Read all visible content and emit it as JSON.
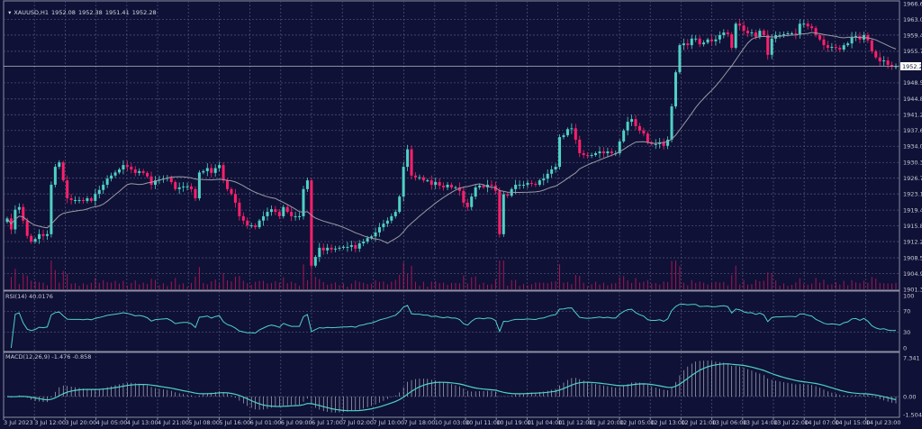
{
  "header": {
    "symbol": "XAUUSD,H1",
    "open": "1952.08",
    "high": "1952.38",
    "low": "1951.41",
    "close": "1952.28",
    "menu_icon": "triangle-down-icon"
  },
  "colors": {
    "background": "#0f1136",
    "bull": "#4fd1c5",
    "bear": "#ff1f6b",
    "grid": "#4b4f73",
    "ma_line": "#9a9aa6",
    "volume": "#c0175a",
    "indicator_line": "#4fd1c5"
  },
  "chart_data": {
    "type": "candlestick",
    "timeframe": "H1",
    "price_axis": {
      "ylim": [
        1901.3,
        1966.6
      ],
      "tick_labels": [
        "1966.60",
        "1963.00",
        "1959.40",
        "1955.70",
        "1948.50",
        "1944.80",
        "1941.20",
        "1937.60",
        "1934.00",
        "1930.30",
        "1926.70",
        "1923.10",
        "1919.40",
        "1915.80",
        "1912.20",
        "1908.50",
        "1904.90",
        "1901.30"
      ],
      "current_price": "1952.28"
    },
    "time_axis": {
      "tick_labels": [
        "3 Jul 2023",
        "3 Jul 12:00",
        "3 Jul 20:00",
        "4 Jul 05:00",
        "4 Jul 13:00",
        "4 Jul 21:00",
        "5 Jul 08:00",
        "5 Jul 16:00",
        "6 Jul 01:00",
        "6 Jul 09:00",
        "6 Jul 17:00",
        "7 Jul 02:00",
        "7 Jul 10:00",
        "7 Jul 18:00",
        "10 Jul 03:00",
        "10 Jul 11:00",
        "10 Jul 19:00",
        "11 Jul 04:00",
        "11 Jul 12:00",
        "11 Jul 20:00",
        "12 Jul 05:00",
        "12 Jul 13:00",
        "12 Jul 21:00",
        "13 Jul 06:00",
        "13 Jul 14:00",
        "13 Jul 22:00",
        "14 Jul 07:00",
        "14 Jul 15:00",
        "14 Jul 23:00"
      ]
    },
    "closes": [
      1917.5,
      1915.0,
      1919.5,
      1920.1,
      1917.0,
      1913.5,
      1912.2,
      1912.8,
      1913.9,
      1913.5,
      1913.9,
      1925.2,
      1929.3,
      1930.3,
      1926.2,
      1922.1,
      1921.7,
      1921.7,
      1921.7,
      1921.5,
      1922.1,
      1921.5,
      1923.1,
      1924.0,
      1925.2,
      1926.6,
      1927.3,
      1928.0,
      1928.7,
      1929.7,
      1929.3,
      1928.7,
      1927.9,
      1928.3,
      1927.9,
      1927.1,
      1925.2,
      1926.2,
      1926.4,
      1926.6,
      1926.8,
      1925.8,
      1924.2,
      1924.6,
      1924.8,
      1924.8,
      1924.2,
      1922.1,
      1928.0,
      1928.3,
      1929.0,
      1927.9,
      1929.0,
      1929.7,
      1926.2,
      1924.2,
      1923.1,
      1921.1,
      1918.0,
      1917.0,
      1915.9,
      1915.9,
      1915.5,
      1917.0,
      1918.0,
      1919.0,
      1919.6,
      1919.0,
      1918.0,
      1920.1,
      1919.0,
      1918.0,
      1918.0,
      1918.0,
      1924.2,
      1926.2,
      1906.7,
      1908.7,
      1910.8,
      1910.2,
      1910.8,
      1910.4,
      1910.6,
      1910.8,
      1911.0,
      1911.0,
      1911.4,
      1910.6,
      1911.8,
      1912.2,
      1913.0,
      1913.4,
      1914.3,
      1915.5,
      1916.3,
      1917.0,
      1918.0,
      1919.0,
      1922.5,
      1929.3,
      1933.3,
      1927.3,
      1926.9,
      1926.9,
      1926.2,
      1926.2,
      1925.2,
      1925.8,
      1925.0,
      1924.6,
      1925.2,
      1924.6,
      1924.6,
      1923.8,
      1921.1,
      1920.1,
      1922.5,
      1924.6,
      1925.0,
      1924.6,
      1925.2,
      1925.0,
      1923.8,
      1913.9,
      1923.0,
      1922.7,
      1924.2,
      1925.2,
      1925.2,
      1925.2,
      1925.6,
      1925.4,
      1925.2,
      1926.2,
      1926.6,
      1927.7,
      1928.7,
      1929.3,
      1936.1,
      1936.5,
      1937.9,
      1938.1,
      1935.5,
      1932.4,
      1932.0,
      1931.8,
      1932.0,
      1932.4,
      1932.8,
      1932.4,
      1932.8,
      1932.4,
      1932.4,
      1935.1,
      1937.6,
      1939.6,
      1940.2,
      1938.6,
      1937.6,
      1936.9,
      1934.9,
      1934.5,
      1934.5,
      1934.9,
      1934.1,
      1935.5,
      1943.1,
      1950.9,
      1957.1,
      1957.5,
      1957.1,
      1958.6,
      1958.6,
      1957.3,
      1957.7,
      1958.4,
      1958.0,
      1958.4,
      1959.4,
      1960.0,
      1959.6,
      1956.5,
      1962.0,
      1961.6,
      1960.4,
      1959.8,
      1960.0,
      1959.0,
      1960.4,
      1959.4,
      1954.9,
      1958.6,
      1959.4,
      1959.4,
      1959.6,
      1959.8,
      1959.8,
      1959.6,
      1962.0,
      1962.0,
      1961.4,
      1961.0,
      1959.4,
      1958.4,
      1957.1,
      1956.5,
      1956.7,
      1956.5,
      1956.1,
      1957.1,
      1957.5,
      1959.0,
      1959.2,
      1958.4,
      1959.4,
      1958.2,
      1955.7,
      1954.3,
      1953.4,
      1953.6,
      1952.6,
      1952.2,
      1952.28
    ],
    "rsi": {
      "label": "RSI(14) 40.0176",
      "levels": [
        "100",
        "70",
        "30",
        "0"
      ]
    },
    "macd": {
      "label": "MACD(12,26,9) -1.476 -0.858",
      "tick_labels": [
        "7.341",
        "0.00",
        "-1.504"
      ],
      "ylim": [
        -1.504,
        7.341
      ]
    }
  }
}
